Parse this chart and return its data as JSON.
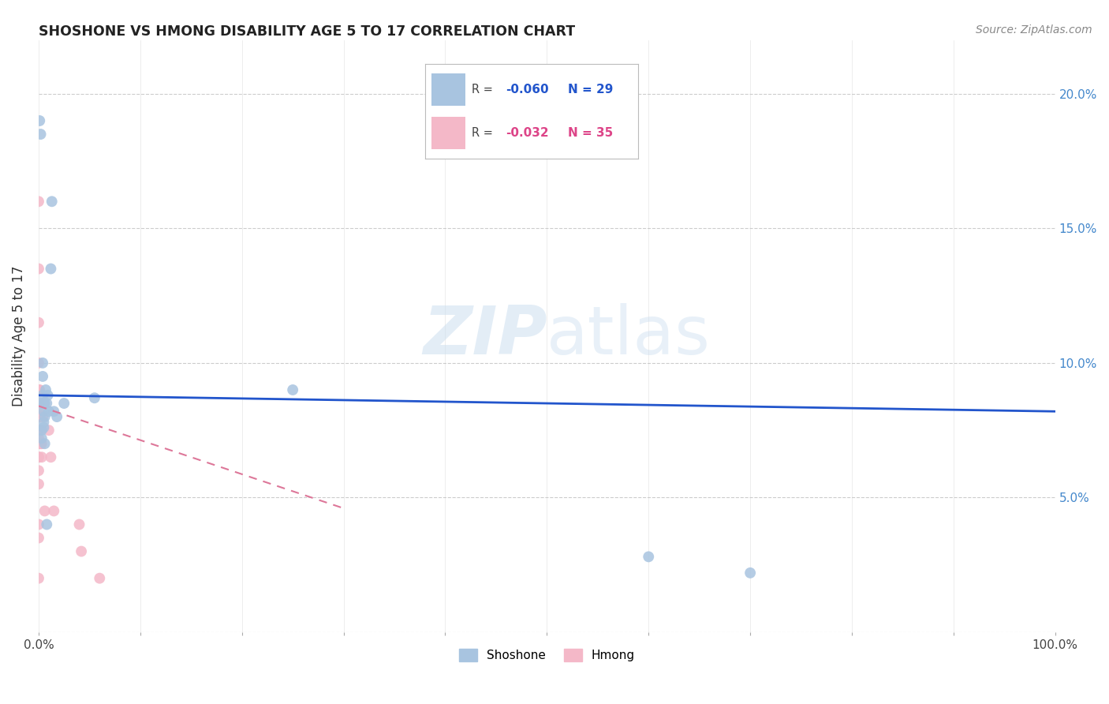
{
  "title": "SHOSHONE VS HMONG DISABILITY AGE 5 TO 17 CORRELATION CHART",
  "source": "Source: ZipAtlas.com",
  "ylabel": "Disability Age 5 to 17",
  "shoshone_R": -0.06,
  "shoshone_N": 29,
  "hmong_R": -0.032,
  "hmong_N": 35,
  "shoshone_color": "#a8c4e0",
  "hmong_color": "#f4b8c8",
  "trendline_shoshone_color": "#2255cc",
  "trendline_hmong_color": "#dd7799",
  "legend_shoshone_label": "Shoshone",
  "legend_hmong_label": "Hmong",
  "watermark_zip": "ZIP",
  "watermark_atlas": "atlas",
  "shoshone_x": [
    0.001,
    0.002,
    0.003,
    0.003,
    0.004,
    0.004,
    0.005,
    0.005,
    0.005,
    0.006,
    0.006,
    0.007,
    0.008,
    0.008,
    0.01,
    0.012,
    0.015,
    0.018,
    0.025,
    0.003,
    0.004,
    0.005,
    0.006,
    0.009,
    0.013,
    0.055,
    0.25,
    0.6,
    0.7
  ],
  "shoshone_y": [
    0.19,
    0.185,
    0.085,
    0.075,
    0.1,
    0.095,
    0.085,
    0.082,
    0.078,
    0.085,
    0.08,
    0.09,
    0.085,
    0.04,
    0.082,
    0.135,
    0.082,
    0.08,
    0.085,
    0.072,
    0.088,
    0.076,
    0.07,
    0.088,
    0.16,
    0.087,
    0.09,
    0.028,
    0.022
  ],
  "hmong_x": [
    0.0,
    0.0,
    0.0,
    0.0,
    0.0,
    0.0,
    0.0,
    0.0,
    0.0,
    0.0,
    0.0,
    0.0,
    0.0,
    0.0,
    0.0,
    0.0,
    0.0,
    0.0,
    0.0,
    0.001,
    0.001,
    0.001,
    0.001,
    0.002,
    0.002,
    0.003,
    0.003,
    0.004,
    0.006,
    0.01,
    0.012,
    0.015,
    0.04,
    0.042,
    0.06
  ],
  "hmong_y": [
    0.16,
    0.135,
    0.115,
    0.1,
    0.09,
    0.085,
    0.082,
    0.08,
    0.075,
    0.075,
    0.072,
    0.07,
    0.065,
    0.065,
    0.06,
    0.055,
    0.04,
    0.035,
    0.02,
    0.09,
    0.085,
    0.08,
    0.07,
    0.075,
    0.07,
    0.07,
    0.065,
    0.08,
    0.045,
    0.075,
    0.065,
    0.045,
    0.04,
    0.03,
    0.02
  ],
  "xlim": [
    0.0,
    1.0
  ],
  "ylim": [
    0.0,
    0.22
  ],
  "xticks": [
    0.0,
    0.1,
    0.2,
    0.3,
    0.4,
    0.5,
    0.6,
    0.7,
    0.8,
    0.9,
    1.0
  ],
  "xticklabels": [
    "0.0%",
    "",
    "",
    "",
    "",
    "",
    "",
    "",
    "",
    "",
    "100.0%"
  ],
  "yticks": [
    0.0,
    0.05,
    0.1,
    0.15,
    0.2
  ],
  "yticklabels_right": [
    "",
    "5.0%",
    "10.0%",
    "15.0%",
    "20.0%"
  ],
  "trendline_shoshone_x0": 0.0,
  "trendline_shoshone_y0": 0.088,
  "trendline_shoshone_x1": 1.0,
  "trendline_shoshone_y1": 0.082,
  "trendline_hmong_x0": 0.0,
  "trendline_hmong_y0": 0.084,
  "trendline_hmong_x1": 0.3,
  "trendline_hmong_y1": 0.046,
  "marker_size": 100,
  "right_ytick_color": "#4488cc",
  "background_color": "#ffffff",
  "grid_color": "#cccccc",
  "title_color": "#222222",
  "source_color": "#888888",
  "ylabel_color": "#333333"
}
